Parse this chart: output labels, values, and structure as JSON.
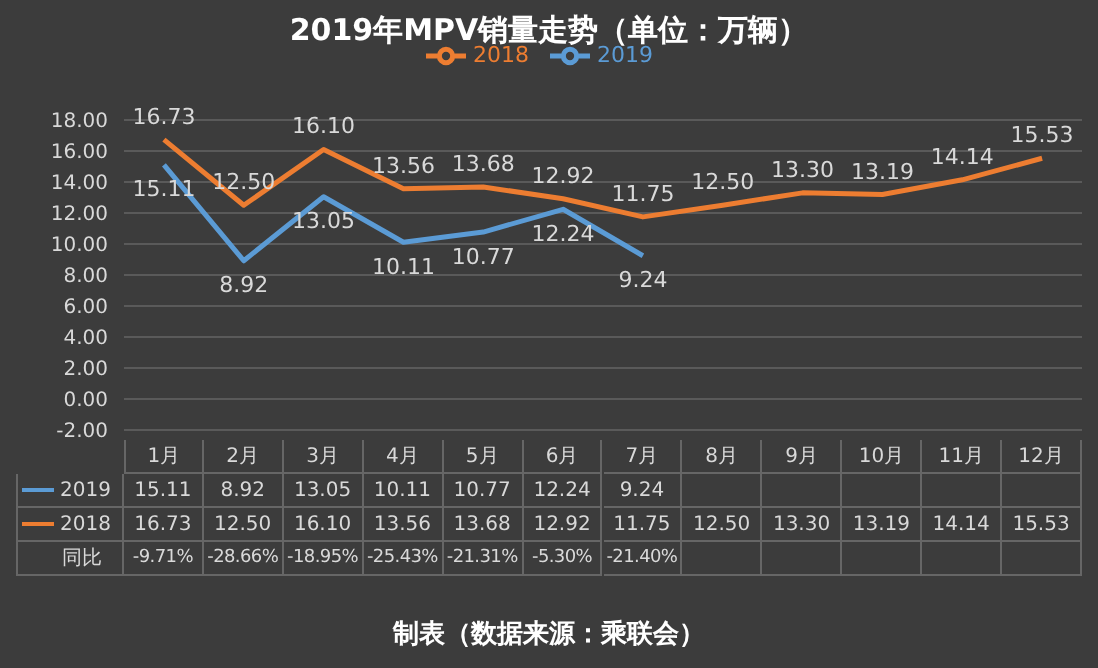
{
  "chart_data": {
    "type": "line",
    "title": "2019年MPV销量走势（单位：万辆）",
    "categories": [
      "1月",
      "2月",
      "3月",
      "4月",
      "5月",
      "6月",
      "7月",
      "8月",
      "9月",
      "10月",
      "11月",
      "12月"
    ],
    "series": [
      {
        "name": "2019",
        "color": "#5b9bd5",
        "values": [
          15.11,
          8.92,
          13.05,
          10.11,
          10.77,
          12.24,
          9.24,
          null,
          null,
          null,
          null,
          null
        ],
        "value_labels": [
          "15.11",
          "8.92",
          "13.05",
          "10.11",
          "10.77",
          "12.24",
          "9.24",
          null,
          null,
          null,
          null,
          null
        ]
      },
      {
        "name": "2018",
        "color": "#ed7d31",
        "values": [
          16.73,
          12.5,
          16.1,
          13.56,
          13.68,
          12.92,
          11.75,
          12.5,
          13.3,
          13.19,
          14.14,
          15.53
        ],
        "value_labels": [
          "16.73",
          "12.50",
          "16.10",
          "13.56",
          "13.68",
          "12.92",
          "11.75",
          "12.50",
          "13.30",
          "13.19",
          "14.14",
          "15.53"
        ]
      }
    ],
    "ylim": [
      -2,
      18
    ],
    "yticks": [
      {
        "value": -2,
        "label": "-2.00"
      },
      {
        "value": 0,
        "label": "0.00"
      },
      {
        "value": 2,
        "label": "2.00"
      },
      {
        "value": 4,
        "label": "4.00"
      },
      {
        "value": 6,
        "label": "6.00"
      },
      {
        "value": 8,
        "label": "8.00"
      },
      {
        "value": 10,
        "label": "10.00"
      },
      {
        "value": 12,
        "label": "12.00"
      },
      {
        "value": 14,
        "label": "14.00"
      },
      {
        "value": 16,
        "label": "16.00"
      },
      {
        "value": 18,
        "label": "18.00"
      }
    ],
    "grid": "y",
    "legend": "top",
    "marker": "none",
    "line_style": "solid",
    "annotations": [
      "制表（数据来源：乘联会）",
      "同比",
      "-9.71%",
      "-28.66%",
      "-18.95%",
      "-25.43%",
      "-21.31%",
      "-5.30%",
      "-21.40%"
    ]
  }
}
